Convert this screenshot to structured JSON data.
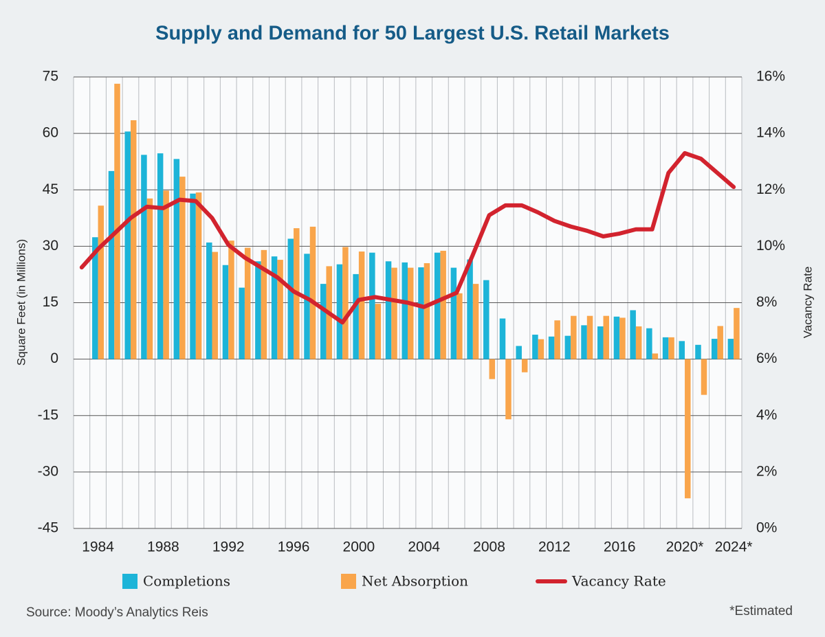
{
  "chart_data": {
    "type": "bar-line",
    "title": "Supply and Demand for 50 Largest U.S. Retail Markets",
    "ylabel": "Square Feet (in Millions)",
    "y2label": "Vacancy Rate",
    "source": "Source: Moody’s Analytics Reis",
    "note": "*Estimated",
    "categories": [
      null,
      "1984",
      null,
      null,
      null,
      "1988",
      null,
      null,
      null,
      "1992",
      null,
      null,
      null,
      "1996",
      null,
      null,
      null,
      "2000",
      null,
      null,
      null,
      "2004",
      null,
      null,
      null,
      "2008",
      null,
      null,
      null,
      "2012",
      null,
      null,
      null,
      "2016",
      null,
      null,
      null,
      "2020*",
      null,
      null,
      "2024*"
    ],
    "ylim": [
      -45,
      75
    ],
    "yticks": [
      75,
      60,
      45,
      30,
      15,
      0,
      -15,
      -30,
      -45
    ],
    "y2lim": [
      0,
      16
    ],
    "y2ticks": [
      {
        "value": 16,
        "label": "16%"
      },
      {
        "value": 14,
        "label": "14%"
      },
      {
        "value": 12,
        "label": "12%"
      },
      {
        "value": 10,
        "label": "10%"
      },
      {
        "value": 8,
        "label": "8%"
      },
      {
        "value": 6,
        "label": "6%"
      },
      {
        "value": 4,
        "label": "4%"
      },
      {
        "value": 2,
        "label": "2%"
      },
      {
        "value": 0,
        "label": "0%"
      }
    ],
    "grid": true,
    "series": [
      {
        "name": "Completions",
        "type": "bar",
        "color": "#1db4d8",
        "values": [
          null,
          32.4,
          50,
          60.5,
          54.3,
          54.7,
          53.2,
          44,
          31,
          25,
          19,
          26,
          27.3,
          32,
          28,
          20,
          25.2,
          22.6,
          28.3,
          26,
          25.7,
          24.4,
          28.3,
          24.3,
          26.5,
          21,
          10.8,
          3.5,
          6.5,
          6,
          6.2,
          9,
          8.7,
          11.3,
          13,
          8.2,
          5.8,
          4.8,
          3.8,
          5.4,
          5.4
        ]
      },
      {
        "name": "Net Absorption",
        "type": "bar",
        "color": "#f9a54b",
        "values": [
          null,
          40.8,
          73.2,
          63.5,
          42.7,
          44.8,
          48.5,
          44.3,
          28.5,
          31.5,
          29.6,
          29,
          26.4,
          34.8,
          35.2,
          24.7,
          29.8,
          28.6,
          14.7,
          24.3,
          24.3,
          25.5,
          28.8,
          17.5,
          20,
          -5.3,
          -16,
          -3.5,
          5.3,
          10.3,
          11.5,
          11.5,
          11.5,
          11,
          8.7,
          1.5,
          5.8,
          -37,
          -9.5,
          8.8,
          13.6
        ]
      },
      {
        "name": "Vacancy Rate",
        "type": "line",
        "axis": "y2",
        "color": "#d2232e",
        "values": [
          9.25,
          9.9,
          10.45,
          11,
          11.4,
          11.35,
          11.65,
          11.6,
          11,
          10.05,
          9.6,
          9.25,
          8.9,
          8.4,
          8.1,
          7.7,
          7.3,
          8.1,
          8.2,
          8.1,
          8,
          7.85,
          8.1,
          8.35,
          9.7,
          11.1,
          11.45,
          11.45,
          11.2,
          10.9,
          10.7,
          10.55,
          10.35,
          10.45,
          10.6,
          10.6,
          12.6,
          13.3,
          13.1,
          12.6,
          12.1
        ]
      }
    ]
  }
}
